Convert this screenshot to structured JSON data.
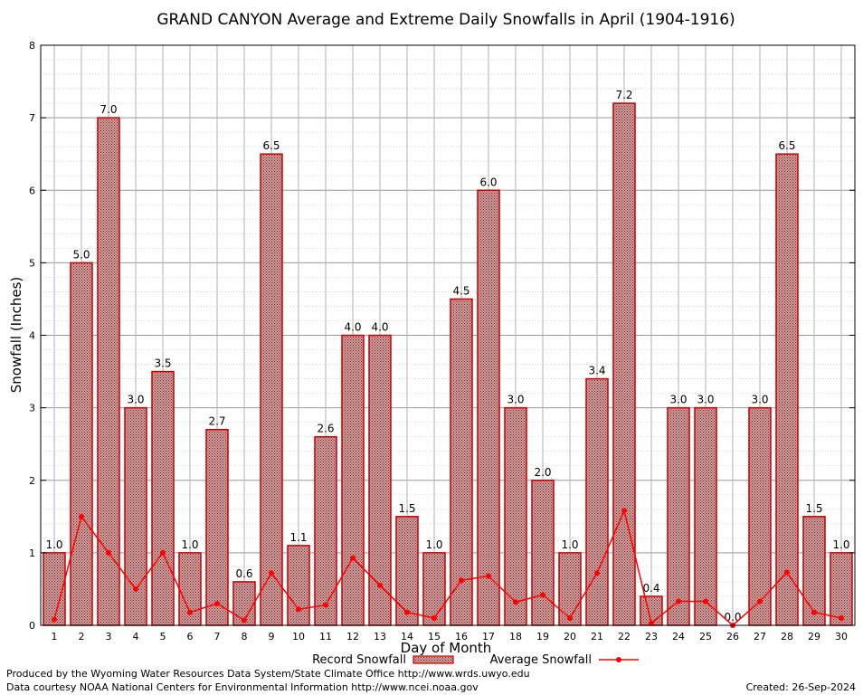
{
  "chart_data": {
    "type": "bar",
    "title": "GRAND CANYON Average and Extreme Daily Snowfalls in April (1904-1916)",
    "xlabel": "Day of Month",
    "ylabel": "Snowfall (Inches)",
    "ylim": [
      0,
      8
    ],
    "yticks": [
      "0",
      "1",
      "2",
      "3",
      "4",
      "5",
      "6",
      "7",
      "8"
    ],
    "categories": [
      "1",
      "2",
      "3",
      "4",
      "5",
      "6",
      "7",
      "8",
      "9",
      "10",
      "11",
      "12",
      "13",
      "14",
      "15",
      "16",
      "17",
      "18",
      "19",
      "20",
      "21",
      "22",
      "23",
      "24",
      "25",
      "26",
      "27",
      "28",
      "29",
      "30"
    ],
    "grid": true,
    "legend_position": "bottom",
    "series": [
      {
        "name": "Record Snowfall",
        "kind": "bar",
        "color": "#cc0000",
        "fill": "#a05050",
        "values": [
          1.0,
          5.0,
          7.0,
          3.0,
          3.5,
          1.0,
          2.7,
          0.6,
          6.5,
          1.1,
          2.6,
          4.0,
          4.0,
          1.5,
          1.0,
          4.5,
          6.0,
          3.0,
          2.0,
          1.0,
          3.4,
          7.2,
          0.4,
          3.0,
          3.0,
          0.0,
          3.0,
          6.5,
          1.5,
          1.0
        ],
        "labels": [
          "1.0",
          "5.0",
          "7.0",
          "3.0",
          "3.5",
          "1.0",
          "2.7",
          "0.6",
          "6.5",
          "1.1",
          "2.6",
          "4.0",
          "4.0",
          "1.5",
          "1.0",
          "4.5",
          "6.0",
          "3.0",
          "2.0",
          "1.0",
          "3.4",
          "7.2",
          "0.4",
          "3.0",
          "3.0",
          "0.0",
          "3.0",
          "6.5",
          "1.5",
          "1.0"
        ]
      },
      {
        "name": "Average Snowfall",
        "kind": "line",
        "color": "#ff0000",
        "values": [
          0.08,
          1.5,
          1.0,
          0.5,
          1.0,
          0.18,
          0.3,
          0.07,
          0.72,
          0.22,
          0.28,
          0.93,
          0.55,
          0.18,
          0.1,
          0.62,
          0.68,
          0.32,
          0.42,
          0.1,
          0.72,
          1.58,
          0.03,
          0.33,
          0.33,
          0.0,
          0.33,
          0.73,
          0.18,
          0.1
        ]
      }
    ]
  },
  "footer": {
    "credit_line1": "Produced by the Wyoming Water Resources Data System/State Climate Office http://www.wrds.uwyo.edu",
    "credit_line2": "Data courtesy NOAA National Centers for Environmental Information http://www.ncei.noaa.gov",
    "created": "Created:  26-Sep-2024"
  }
}
